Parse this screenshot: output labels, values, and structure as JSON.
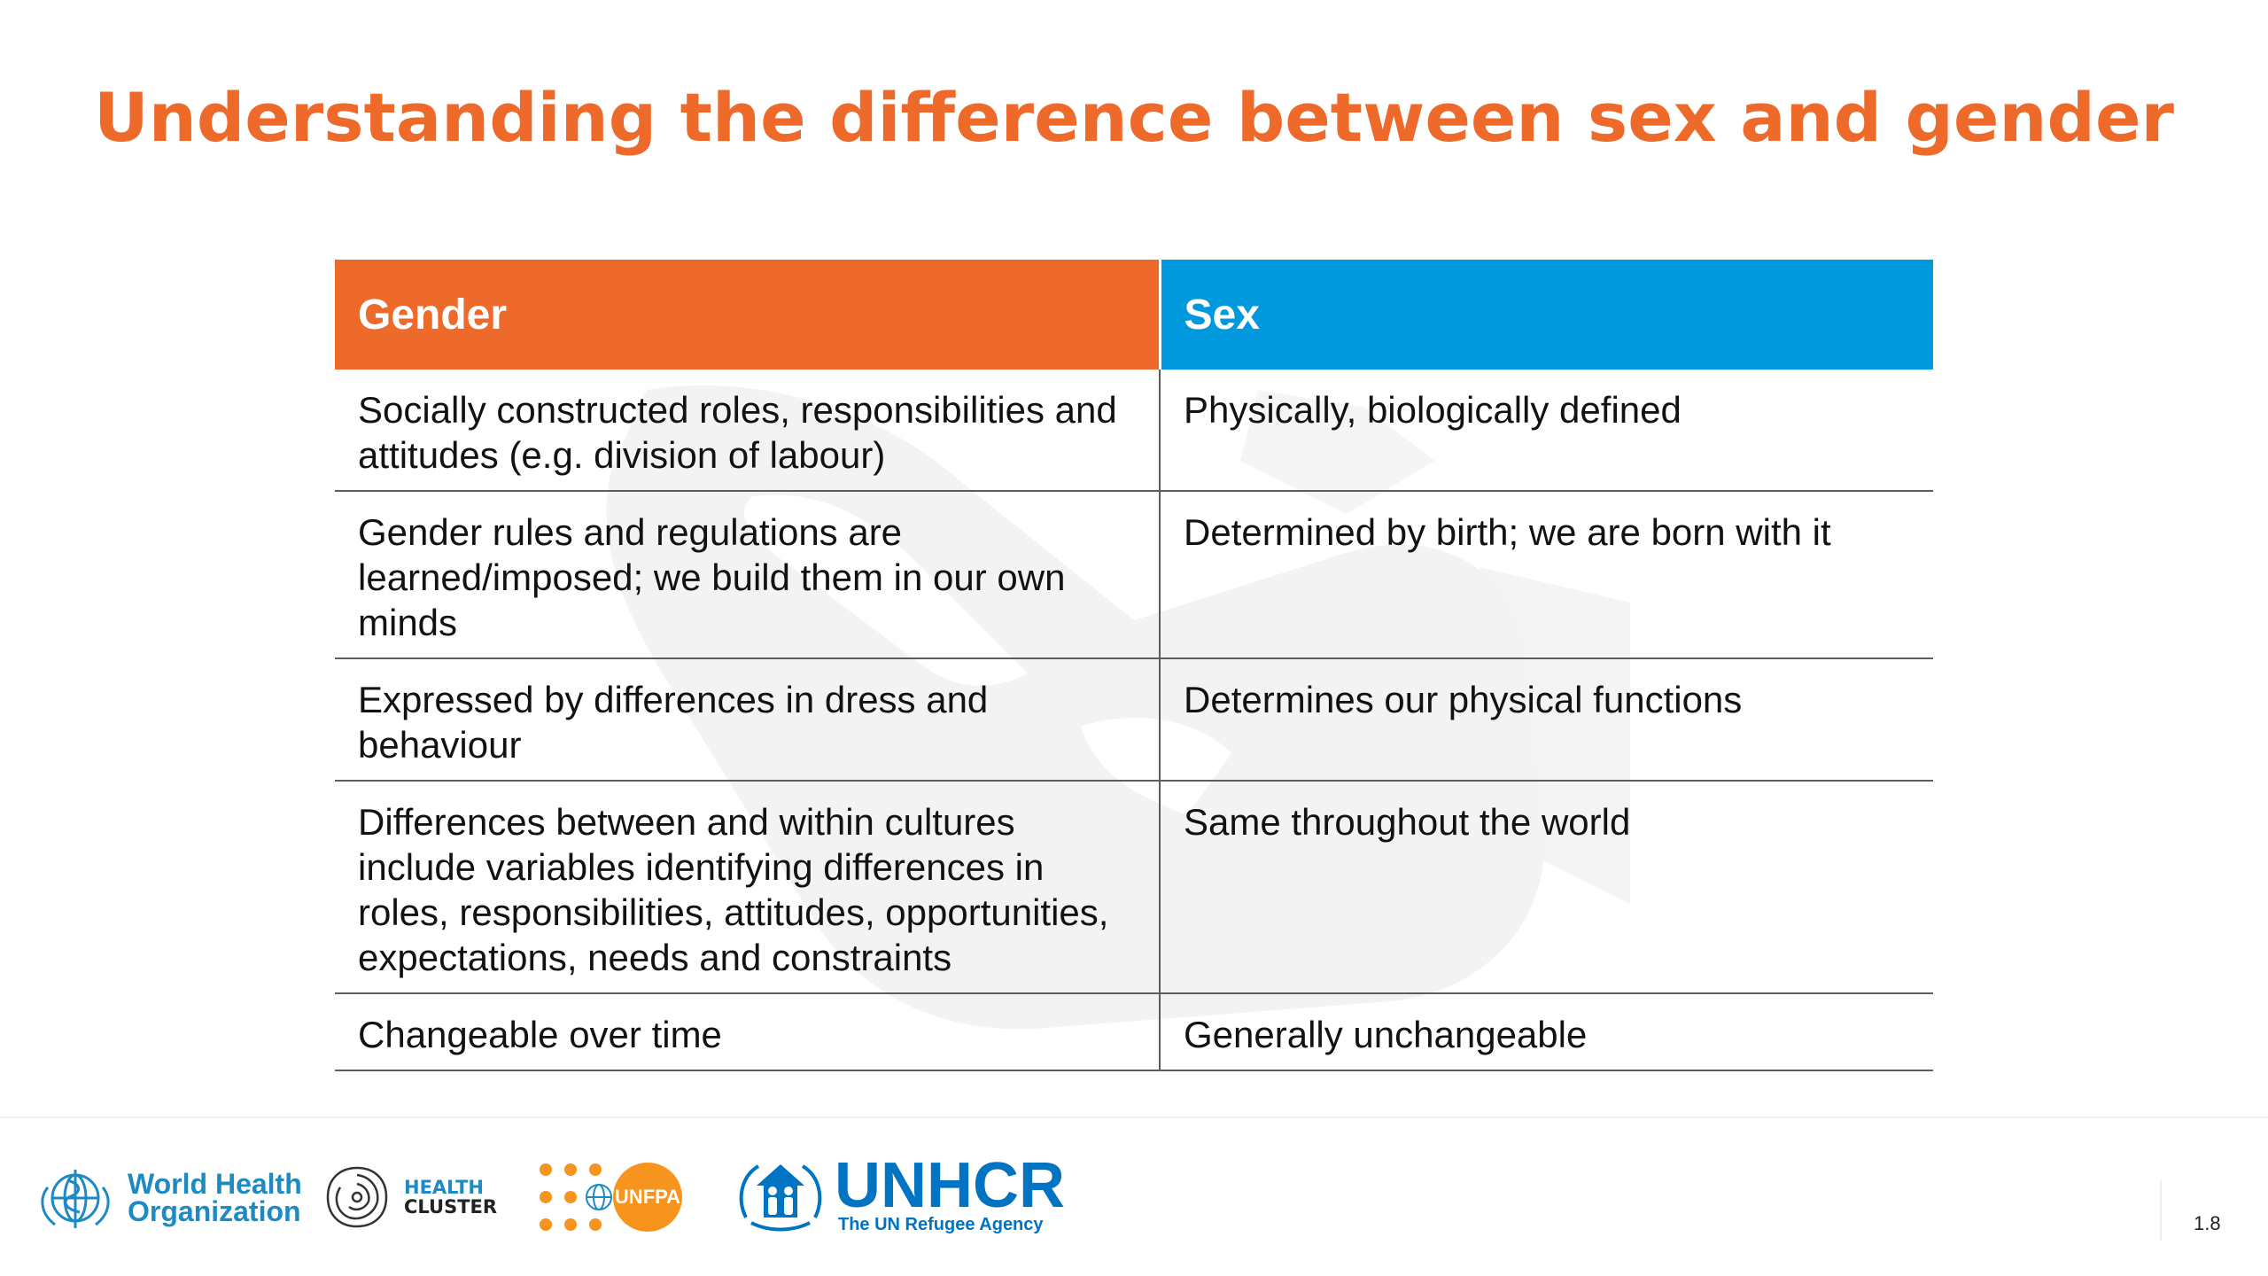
{
  "slide": {
    "title": "Understanding the difference between sex and gender",
    "page_number": "1.8"
  },
  "table": {
    "headers": {
      "gender": "Gender",
      "sex": "Sex"
    },
    "rows": [
      {
        "gender": "Socially constructed roles, responsibilities and attitudes (e.g. division of labour)",
        "sex": "Physically, biologically defined"
      },
      {
        "gender": "Gender rules and regulations are learned/imposed; we build them in our own minds",
        "sex": "Determined by birth; we are born with it"
      },
      {
        "gender": "Expressed by differences in dress and behaviour",
        "sex": "Determines our physical functions"
      },
      {
        "gender": "Differences between and within cultures include variables identifying differences in roles, responsibilities, attitudes, opportunities, expectations, needs and constraints",
        "sex": "Same throughout the world"
      },
      {
        "gender": "Changeable over time",
        "sex": "Generally unchangeable"
      }
    ]
  },
  "footer_logos": {
    "who": {
      "line1": "World Health",
      "line2": "Organization"
    },
    "health_cluster": {
      "line1": "HEALTH",
      "line2": "CLUSTER"
    },
    "unfpa": {
      "label": "UNFPA"
    },
    "unhcr": {
      "name": "UNHCR",
      "tagline": "The UN Refugee Agency"
    }
  },
  "colors": {
    "title": "#ee6a2b",
    "gender_header": "#ee6a2b",
    "sex_header": "#0199dd",
    "who_blue": "#1d8ac4",
    "unfpa_orange": "#f7941d",
    "unhcr_blue": "#0073c2"
  }
}
